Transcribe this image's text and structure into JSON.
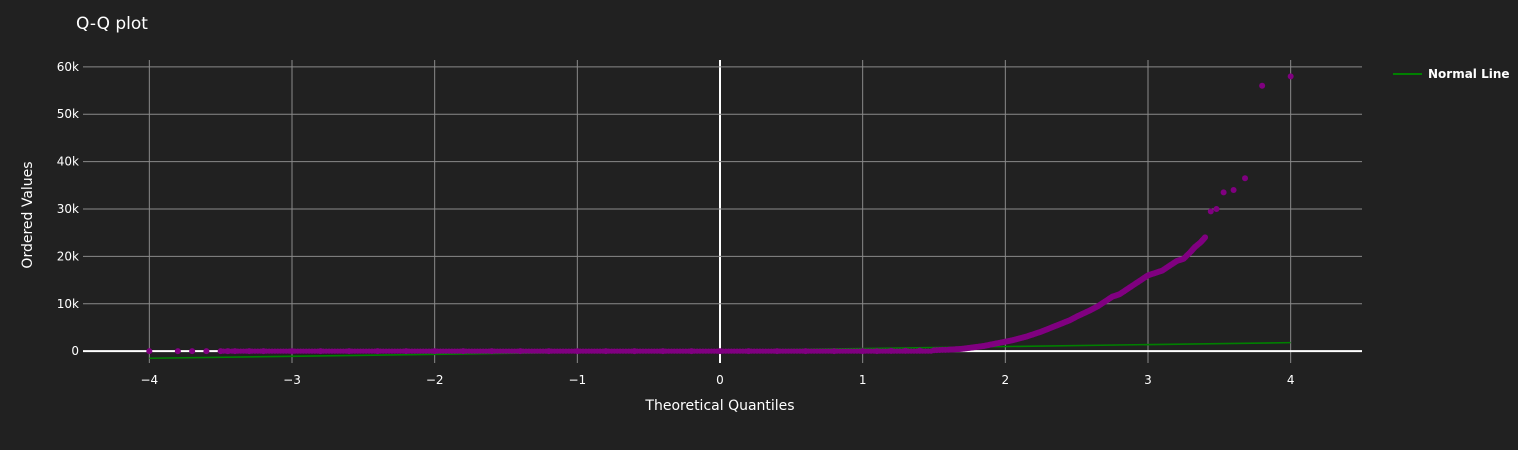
{
  "chart_data": {
    "type": "scatter",
    "title": "Q-Q plot",
    "xlabel": "Theoretical Quantiles",
    "ylabel": "Ordered Values",
    "xlim": [
      -4.5,
      4.5
    ],
    "ylim": [
      -2500,
      62500
    ],
    "xticks": [
      -4,
      -3,
      -2,
      -1,
      0,
      1,
      2,
      3,
      4
    ],
    "xtick_labels": [
      "−4",
      "−3",
      "−2",
      "−1",
      "0",
      "1",
      "2",
      "3",
      "4"
    ],
    "yticks": [
      0,
      10000,
      20000,
      30000,
      40000,
      50000,
      60000
    ],
    "ytick_labels": [
      "0",
      "10k",
      "20k",
      "30k",
      "40k",
      "50k",
      "60k"
    ],
    "grid": true,
    "background": "#212121",
    "series": [
      {
        "mode": "markers",
        "color": "#800080",
        "x": [
          -4.0,
          -3.8,
          -3.7,
          -3.6,
          -3.5,
          -3.45,
          -3.4,
          -3.3,
          -3.2,
          -3.0,
          -2.8,
          -2.6,
          -2.4,
          -2.2,
          -2.0,
          -1.8,
          -1.6,
          -1.4,
          -1.2,
          -1.0,
          -0.8,
          -0.6,
          -0.4,
          -0.2,
          0.0,
          0.2,
          0.4,
          0.6,
          0.8,
          1.0,
          1.1,
          1.2,
          1.3,
          1.4,
          1.5,
          1.6,
          1.65,
          1.7,
          1.75,
          1.8,
          1.85,
          1.9,
          1.95,
          2.0,
          2.05,
          2.1,
          2.15,
          2.2,
          2.25,
          2.3,
          2.35,
          2.4,
          2.45,
          2.5,
          2.55,
          2.6,
          2.65,
          2.7,
          2.75,
          2.8,
          2.85,
          2.9,
          2.95,
          3.0,
          3.05,
          3.1,
          3.15,
          3.2,
          3.25,
          3.3,
          3.33,
          3.37,
          3.4,
          3.44,
          3.48,
          3.53,
          3.6,
          3.68,
          3.8,
          4.0
        ],
        "y": [
          0,
          0,
          0,
          0,
          0,
          0,
          0,
          0,
          0,
          0,
          0,
          0,
          0,
          0,
          0,
          0,
          0,
          0,
          0,
          0,
          0,
          0,
          0,
          0,
          0,
          0,
          0,
          0,
          0,
          0,
          0,
          50,
          80,
          100,
          200,
          300,
          400,
          500,
          700,
          900,
          1100,
          1400,
          1700,
          2000,
          2300,
          2700,
          3100,
          3600,
          4100,
          4700,
          5300,
          5900,
          6500,
          7300,
          8000,
          8700,
          9500,
          10500,
          11500,
          12000,
          13000,
          14000,
          15000,
          16000,
          16500,
          17000,
          18000,
          19000,
          19500,
          21000,
          22000,
          23000,
          24000,
          29500,
          30000,
          33500,
          34000,
          36500,
          56000,
          58000
        ]
      },
      {
        "name": "Normal Line",
        "mode": "line",
        "color": "#008000",
        "x": [
          -4,
          4
        ],
        "y": [
          -1500,
          1800
        ]
      }
    ],
    "legend": {
      "position": "top-right",
      "label": "Normal Line",
      "color": "#008000"
    }
  }
}
